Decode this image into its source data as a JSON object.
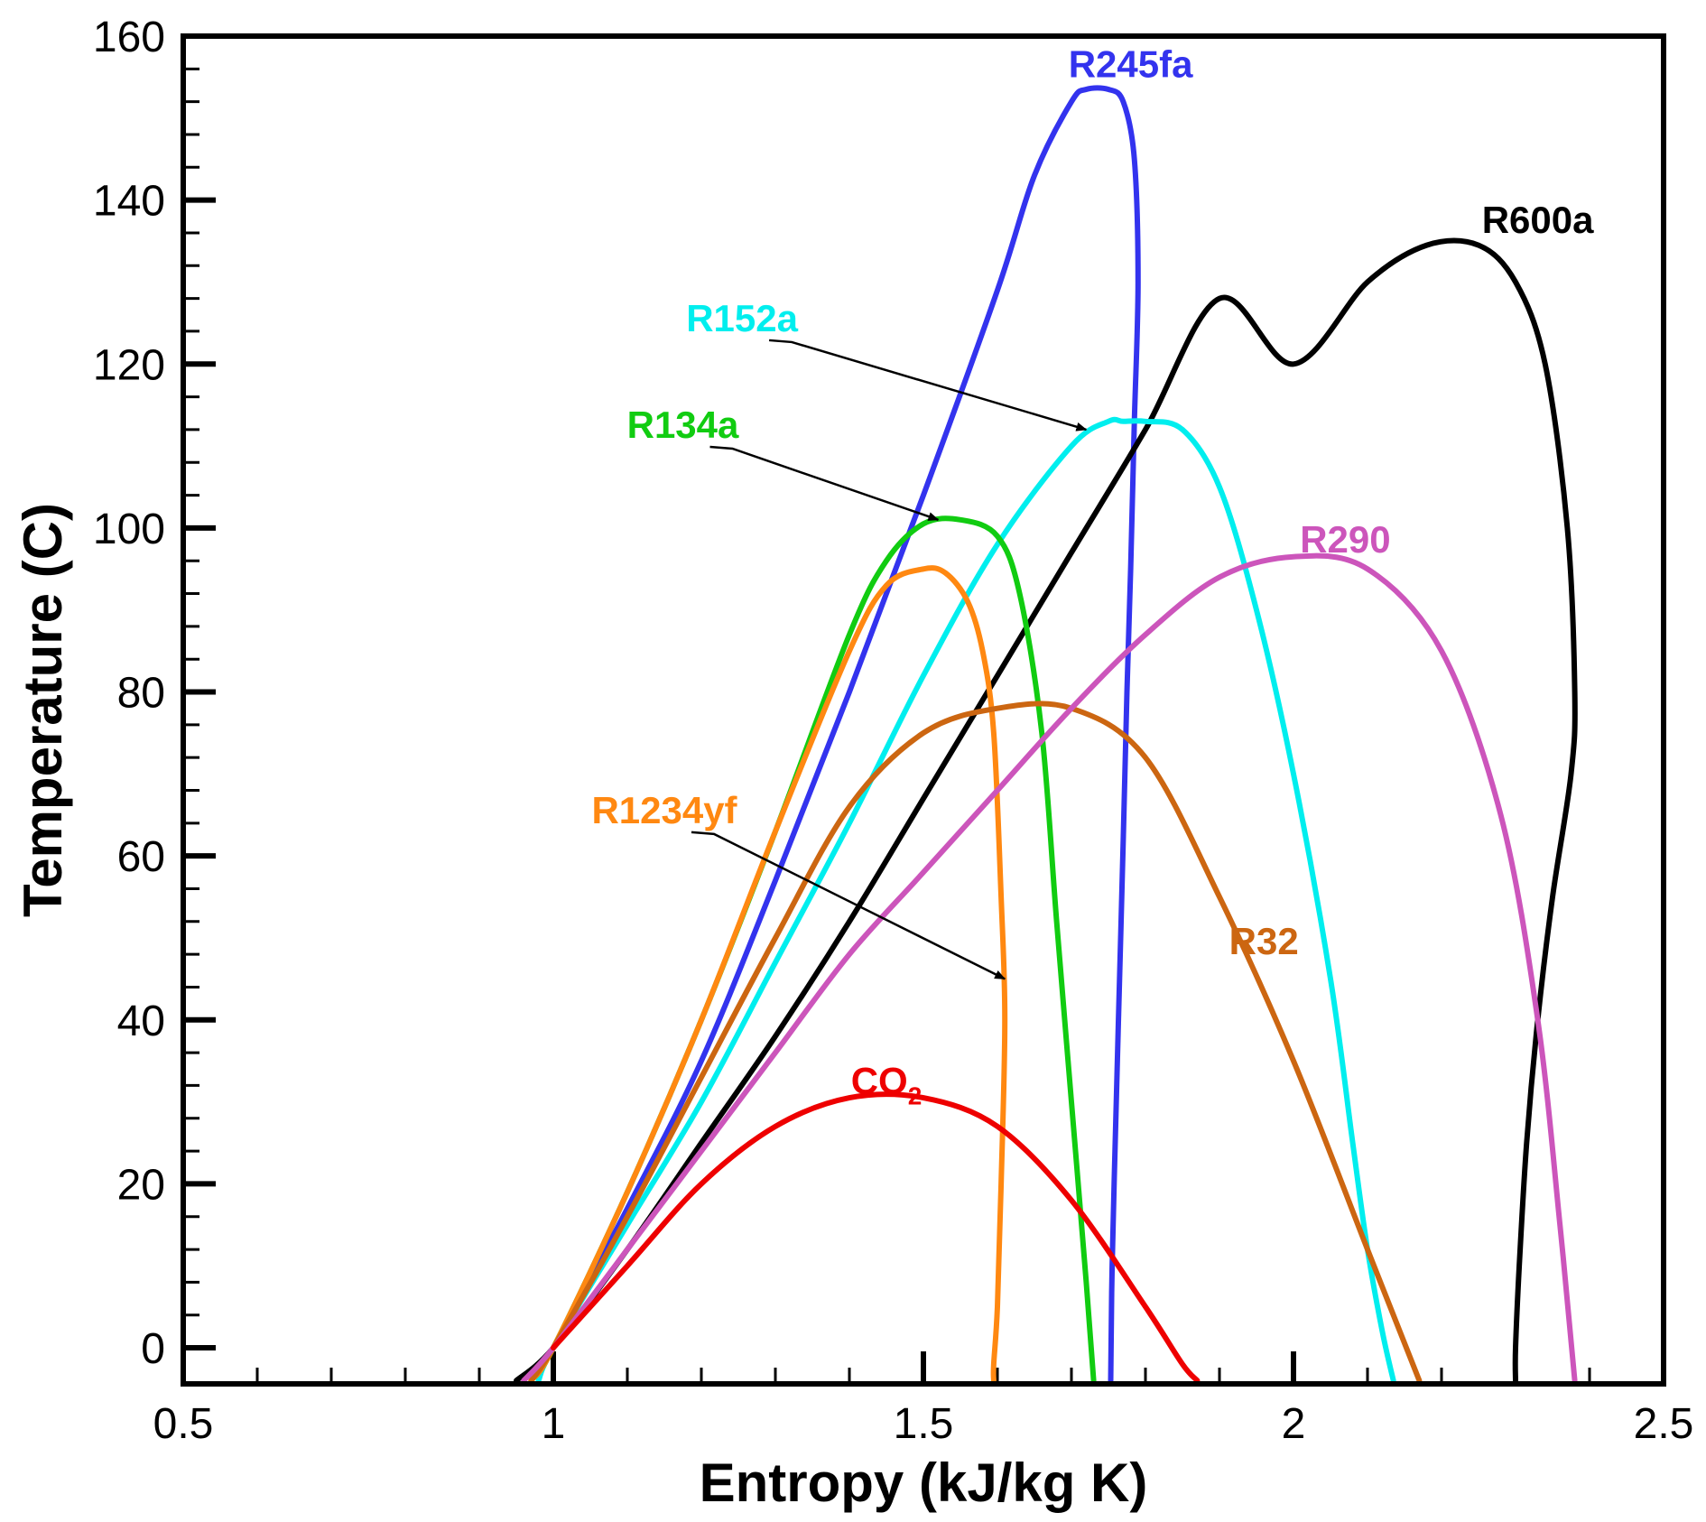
{
  "chart_data": {
    "type": "line",
    "title": "",
    "xlabel": "Entropy (kJ/kg K)",
    "ylabel": "Temperature (C)",
    "xlim": [
      0.5,
      2.5
    ],
    "ylim": [
      -4.4,
      160
    ],
    "xticks": [
      {
        "value": 0.5,
        "label": "0.5"
      },
      {
        "value": 1,
        "label": "1"
      },
      {
        "value": 1.5,
        "label": "1.5"
      },
      {
        "value": 2,
        "label": "2"
      },
      {
        "value": 2.5,
        "label": "2.5"
      }
    ],
    "yticks": [
      {
        "value": 0,
        "label": "0"
      },
      {
        "value": 20,
        "label": "20"
      },
      {
        "value": 40,
        "label": "40"
      },
      {
        "value": 60,
        "label": "60"
      },
      {
        "value": 80,
        "label": "80"
      },
      {
        "value": 100,
        "label": "100"
      },
      {
        "value": 120,
        "label": "120"
      },
      {
        "value": 140,
        "label": "140"
      },
      {
        "value": 160,
        "label": "160"
      }
    ],
    "x_minor_step": 0.1,
    "y_minor_step": 4,
    "grid": false,
    "series": [
      {
        "name": "R245fa",
        "color": "#3333ee",
        "x": [
          1.0,
          1.1,
          1.2,
          1.3,
          1.4,
          1.5,
          1.6,
          1.65,
          1.7,
          1.72,
          1.75,
          1.77,
          1.785,
          1.79,
          1.785,
          1.78,
          1.775,
          1.77,
          1.765,
          1.76,
          1.755,
          1.753
        ],
        "y": [
          0,
          17,
          35,
          57,
          80,
          104,
          129,
          143,
          152,
          153.5,
          153.5,
          152,
          145,
          130,
          113,
          95,
          80,
          62,
          45,
          28,
          10,
          -4
        ]
      },
      {
        "name": "R600a",
        "color": "#000000",
        "x": [
          0.95,
          1.0,
          1.1,
          1.2,
          1.3,
          1.4,
          1.5,
          1.6,
          1.7,
          1.8,
          1.9,
          2.0,
          2.1,
          2.18,
          2.25,
          2.3,
          2.34,
          2.37,
          2.38,
          2.375,
          2.35,
          2.33,
          2.315,
          2.305,
          2.3,
          2.3
        ],
        "y": [
          -4,
          0,
          12,
          25,
          38,
          52,
          67,
          82,
          97,
          112,
          128,
          120,
          130,
          134.5,
          134.5,
          130,
          120,
          100,
          80,
          70,
          55,
          40,
          25,
          10,
          0,
          -4
        ]
      },
      {
        "name": "R152a",
        "color": "#00eeee",
        "x": [
          0.98,
          1.0,
          1.1,
          1.2,
          1.3,
          1.4,
          1.5,
          1.6,
          1.7,
          1.75,
          1.77,
          1.8,
          1.85,
          1.9,
          1.95,
          2.0,
          2.05,
          2.08,
          2.1,
          2.12,
          2.135
        ],
        "y": [
          -4,
          0,
          15,
          30,
          47,
          64,
          82,
          98,
          110,
          113,
          113,
          113,
          112,
          105,
          90,
          70,
          45,
          25,
          12,
          2,
          -4
        ]
      },
      {
        "name": "R134a",
        "color": "#11cc11",
        "x": [
          0.97,
          1.0,
          1.1,
          1.2,
          1.3,
          1.4,
          1.45,
          1.5,
          1.55,
          1.6,
          1.63,
          1.66,
          1.68,
          1.7,
          1.72,
          1.73
        ],
        "y": [
          -4,
          0,
          19,
          40,
          63,
          87,
          96,
          100.5,
          101,
          99,
          92,
          75,
          52,
          30,
          8,
          -4
        ]
      },
      {
        "name": "R1234yf",
        "color": "#ff8811",
        "x": [
          0.97,
          1.0,
          1.1,
          1.2,
          1.3,
          1.4,
          1.45,
          1.5,
          1.53,
          1.56,
          1.58,
          1.595,
          1.605,
          1.61,
          1.605,
          1.6,
          1.595,
          1.595
        ],
        "y": [
          -4,
          0,
          19,
          40,
          63,
          85,
          93,
          95,
          94.5,
          91,
          85,
          75,
          55,
          40,
          20,
          5,
          -2,
          -4
        ]
      },
      {
        "name": "R32",
        "color": "#cc6611",
        "x": [
          0.97,
          1.0,
          1.1,
          1.2,
          1.3,
          1.4,
          1.5,
          1.6,
          1.7,
          1.8,
          1.9,
          2.0,
          2.1,
          2.17
        ],
        "y": [
          -4,
          0,
          16,
          33,
          50,
          66,
          75,
          78,
          78,
          72,
          55,
          35,
          12,
          -4
        ]
      },
      {
        "name": "R290",
        "color": "#cc55bb",
        "x": [
          0.96,
          1.0,
          1.1,
          1.2,
          1.3,
          1.4,
          1.5,
          1.6,
          1.7,
          1.8,
          1.9,
          2.0,
          2.1,
          2.2,
          2.28,
          2.33,
          2.36,
          2.38
        ],
        "y": [
          -4,
          0,
          12,
          24,
          36,
          48,
          58,
          68,
          78,
          87,
          94,
          96.5,
          95,
          85,
          65,
          40,
          15,
          -4
        ]
      },
      {
        "name": "CO2",
        "color": "#ee0000",
        "x": [
          1.0,
          1.1,
          1.2,
          1.3,
          1.4,
          1.5,
          1.6,
          1.7,
          1.8,
          1.85,
          1.87
        ],
        "y": [
          0,
          10,
          20,
          27,
          30.5,
          30.5,
          27,
          18,
          5,
          -2,
          -4
        ]
      }
    ],
    "annotations": [
      {
        "text": "R245fa",
        "color": "#3333ee",
        "at": [
          1.78,
          155
        ]
      },
      {
        "text": "R600a",
        "color": "#000000",
        "at": [
          2.33,
          136
        ]
      },
      {
        "text": "R152a",
        "color": "#00eeee",
        "at": [
          1.255,
          124
        ],
        "arrow_to": [
          1.72,
          112
        ]
      },
      {
        "text": "R134a",
        "color": "#11cc11",
        "at": [
          1.175,
          111
        ],
        "arrow_to": [
          1.52,
          101
        ]
      },
      {
        "text": "R290",
        "color": "#cc55bb",
        "at": [
          2.07,
          97
        ]
      },
      {
        "text": "R32",
        "color": "#cc6611",
        "at": [
          1.96,
          48
        ]
      },
      {
        "text": "R1234yf",
        "color": "#ff8811",
        "at": [
          1.15,
          64
        ],
        "arrow_to": [
          1.61,
          45
        ]
      },
      {
        "text": "CO",
        "subscript": "2",
        "color": "#ee0000",
        "at": [
          1.45,
          31
        ]
      }
    ]
  }
}
